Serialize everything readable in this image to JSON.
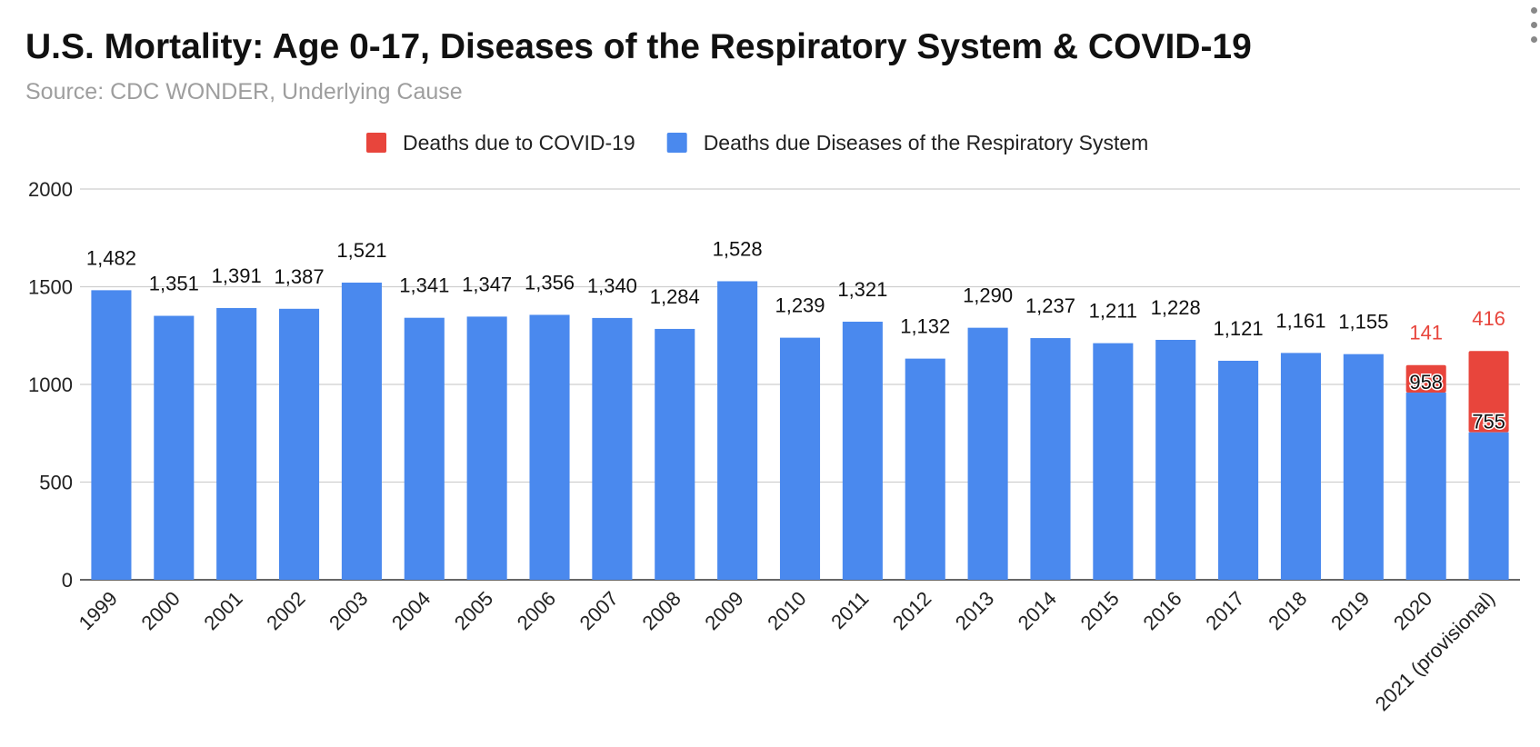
{
  "chart_data": {
    "type": "bar",
    "stacked": true,
    "title": "U.S. Mortality: Age 0-17, Diseases of the Respiratory System & COVID-19",
    "subtitle": "Source: CDC WONDER, Underlying Cause",
    "legend_position": "top",
    "grid": true,
    "ylim": [
      0,
      2000
    ],
    "yticks": [
      "0",
      "500",
      "1000",
      "1500",
      "2000"
    ],
    "categories": [
      "1999",
      "2000",
      "2001",
      "2002",
      "2003",
      "2004",
      "2005",
      "2006",
      "2007",
      "2008",
      "2009",
      "2010",
      "2011",
      "2012",
      "2013",
      "2014",
      "2015",
      "2016",
      "2017",
      "2018",
      "2019",
      "2020",
      "2021 (provisional)"
    ],
    "series": [
      {
        "name": "Deaths due Diseases of the Respiratory System",
        "color": "#4a89ee",
        "values": [
          1482,
          1351,
          1391,
          1387,
          1521,
          1341,
          1347,
          1356,
          1340,
          1284,
          1528,
          1239,
          1321,
          1132,
          1290,
          1237,
          1211,
          1228,
          1121,
          1161,
          1155,
          958,
          755
        ],
        "labels": [
          "1,482",
          "1,351",
          "1,391",
          "1,387",
          "1,521",
          "1,341",
          "1,347",
          "1,356",
          "1,340",
          "1,284",
          "1,528",
          "1,239",
          "1,321",
          "1,132",
          "1,290",
          "1,237",
          "1,211",
          "1,228",
          "1,121",
          "1,161",
          "1,155",
          "958",
          "755"
        ]
      },
      {
        "name": "Deaths due to COVID-19",
        "color": "#e8453c",
        "values": [
          0,
          0,
          0,
          0,
          0,
          0,
          0,
          0,
          0,
          0,
          0,
          0,
          0,
          0,
          0,
          0,
          0,
          0,
          0,
          0,
          0,
          141,
          416
        ],
        "labels": [
          "",
          "",
          "",
          "",
          "",
          "",
          "",
          "",
          "",
          "",
          "",
          "",
          "",
          "",
          "",
          "",
          "",
          "",
          "",
          "",
          "",
          "141",
          "416"
        ]
      }
    ],
    "legend": [
      {
        "name": "Deaths due to COVID-19",
        "color": "#e8453c"
      },
      {
        "name": "Deaths due Diseases of the Respiratory System",
        "color": "#4a89ee"
      }
    ]
  }
}
